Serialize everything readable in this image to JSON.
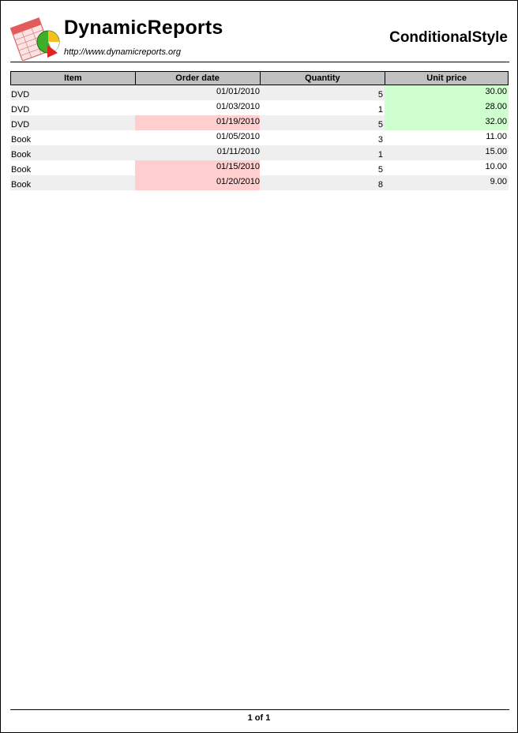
{
  "header": {
    "brand_name": "DynamicReports",
    "brand_url": "http://www.dynamicreports.org",
    "report_title": "ConditionalStyle"
  },
  "table": {
    "columns": [
      "Item",
      "Order date",
      "Quantity",
      "Unit price"
    ],
    "rows": [
      {
        "item": "DVD",
        "date": "01/01/2010",
        "qty": "5",
        "price": "30.00"
      },
      {
        "item": "DVD",
        "date": "01/03/2010",
        "qty": "1",
        "price": "28.00"
      },
      {
        "item": "DVD",
        "date": "01/19/2010",
        "qty": "5",
        "price": "32.00"
      },
      {
        "item": "Book",
        "date": "01/05/2010",
        "qty": "3",
        "price": "11.00"
      },
      {
        "item": "Book",
        "date": "01/11/2010",
        "qty": "1",
        "price": "15.00"
      },
      {
        "item": "Book",
        "date": "01/15/2010",
        "qty": "5",
        "price": "10.00"
      },
      {
        "item": "Book",
        "date": "01/20/2010",
        "qty": "8",
        "price": "9.00"
      }
    ]
  },
  "footer": {
    "page_number": "1 of 1"
  },
  "colors": {
    "header_bg": "#c0c0c0",
    "row_alt_bg": "#efefef",
    "highlight_red": "#ffcfcf",
    "highlight_green": "#cfffcf"
  },
  "icons": {
    "logo": "report-logo-icon"
  }
}
